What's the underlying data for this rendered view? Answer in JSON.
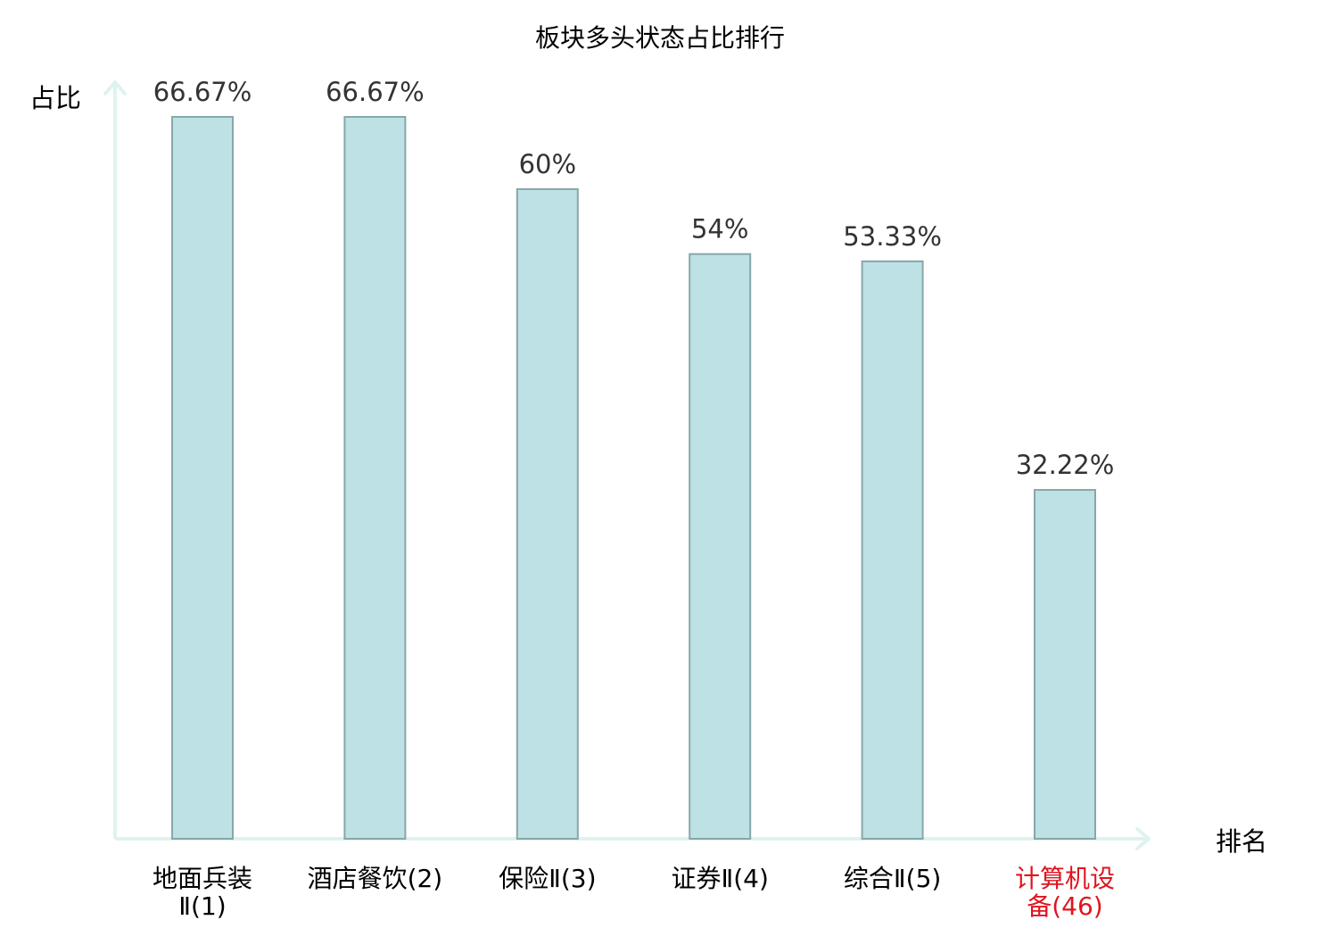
{
  "chart_data": {
    "type": "bar",
    "title": "板块多头状态占比排行",
    "xlabel": "排名",
    "ylabel": "占比",
    "ylim": [
      0,
      70
    ],
    "grid": false,
    "categories": [
      {
        "lines": [
          "地面兵装",
          "Ⅱ(1)"
        ],
        "highlight": false
      },
      {
        "lines": [
          "酒店餐饮(2)"
        ],
        "highlight": false
      },
      {
        "lines": [
          "保险Ⅱ(3)"
        ],
        "highlight": false
      },
      {
        "lines": [
          "证券Ⅱ(4)"
        ],
        "highlight": false
      },
      {
        "lines": [
          "综合Ⅱ(5)"
        ],
        "highlight": false
      },
      {
        "lines": [
          "计算机设",
          "备(46)"
        ],
        "highlight": true
      }
    ],
    "values": [
      66.67,
      66.67,
      60,
      54,
      53.33,
      32.22
    ],
    "value_labels": [
      "66.67%",
      "66.67%",
      "60%",
      "54%",
      "53.33%",
      "32.22%"
    ],
    "colors": {
      "bar_fill": "#bde1e4",
      "bar_stroke": "#88a7a9",
      "axis": "#dff2f0",
      "text": "#000000",
      "value_text": "#333333",
      "highlight_text": "#e0141e"
    }
  }
}
